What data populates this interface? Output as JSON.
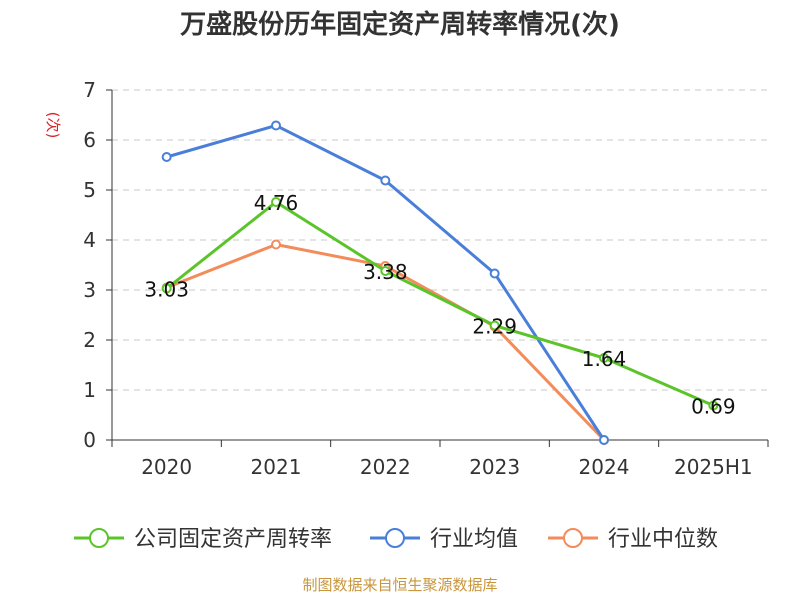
{
  "chart_data": {
    "type": "line",
    "title": "万盛股份历年固定资产周转率情况(次)",
    "ylabel": "(次)",
    "ylim": [
      0,
      7
    ],
    "yticks": [
      0,
      1,
      2,
      3,
      4,
      5,
      6,
      7
    ],
    "grid": true,
    "legend_position": "bottom",
    "categories": [
      "2020",
      "2021",
      "2022",
      "2023",
      "2024",
      "2025H1"
    ],
    "series": [
      {
        "name": "公司固定资产周转率",
        "color": "#5bc42a",
        "values": [
          3.03,
          4.76,
          3.38,
          2.29,
          1.64,
          0.69
        ],
        "labels": [
          "3.03",
          "4.76",
          "3.38",
          "2.29",
          "1.64",
          "0.69"
        ]
      },
      {
        "name": "行业均值",
        "color": "#4a7fd9",
        "values": [
          5.66,
          6.29,
          5.19,
          3.33,
          0.0,
          null
        ]
      },
      {
        "name": "行业中位数",
        "color": "#f38b5a",
        "values": [
          3.05,
          3.91,
          3.48,
          2.27,
          0.0,
          null
        ]
      }
    ],
    "ylabel_color": "#d9262b"
  },
  "source": {
    "text": "制图数据来自恒生聚源数据库",
    "color": "#c8963c"
  }
}
